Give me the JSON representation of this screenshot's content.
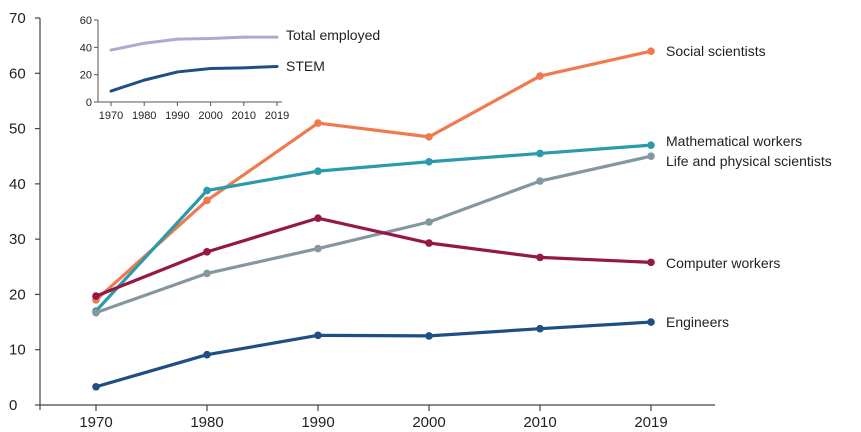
{
  "chart_data": [
    {
      "type": "line",
      "title": "",
      "xlabel": "",
      "ylabel": "",
      "x": [
        "1970",
        "1980",
        "1990",
        "2000",
        "2010",
        "2019"
      ],
      "ylim": [
        0,
        70
      ],
      "yticks": [
        0,
        10,
        20,
        30,
        40,
        50,
        60,
        70
      ],
      "grid": false,
      "legend": "direct labels at right end of lines",
      "series": [
        {
          "name": "Social scientists",
          "color": "#EF7A4E",
          "values": [
            19,
            37,
            51,
            48.5,
            59.5,
            64
          ]
        },
        {
          "name": "Mathematical workers",
          "color": "#2A9BAA",
          "values": [
            17,
            38.8,
            42.3,
            44,
            45.5,
            47
          ]
        },
        {
          "name": "Life and physical scientists",
          "color": "#8497A1",
          "values": [
            16.7,
            23.8,
            28.3,
            33.1,
            40.5,
            45
          ]
        },
        {
          "name": "Computer workers",
          "color": "#951744",
          "values": [
            19.7,
            27.7,
            33.8,
            29.3,
            26.7,
            25.8
          ]
        },
        {
          "name": "Engineers",
          "color": "#1F4E85",
          "values": [
            3.3,
            9.1,
            12.6,
            12.5,
            13.8,
            15
          ]
        }
      ]
    },
    {
      "type": "line",
      "title": "",
      "x": [
        "1970",
        "1980",
        "1990",
        "2000",
        "2010",
        "2019"
      ],
      "ylim": [
        0,
        60
      ],
      "yticks": [
        0,
        20,
        40,
        60
      ],
      "grid": false,
      "legend": "direct labels at right end of lines",
      "series": [
        {
          "name": "Total employed",
          "color": "#ABABCF",
          "values": [
            38,
            43,
            46,
            46.5,
            47.5,
            47.5
          ]
        },
        {
          "name": "STEM",
          "color": "#1F4E85",
          "values": [
            8,
            16,
            22,
            24.5,
            25,
            26
          ]
        }
      ]
    }
  ]
}
